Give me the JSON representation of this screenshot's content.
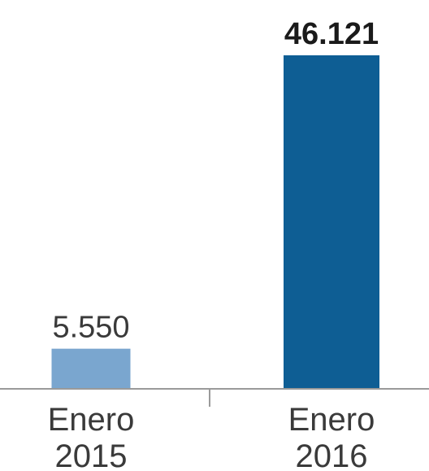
{
  "chart_data": {
    "type": "bar",
    "categories": [
      {
        "line1": "Enero",
        "line2": "2015"
      },
      {
        "line1": "Enero",
        "line2": "2016"
      }
    ],
    "values": [
      5550,
      46121
    ],
    "value_labels": [
      "5.550",
      "46.121"
    ],
    "value_label_bold": [
      false,
      true
    ],
    "bar_colors": [
      "#7aa6cf",
      "#0e5e94"
    ],
    "ylim": [
      0,
      46121
    ],
    "title": "",
    "xlabel": "",
    "ylabel": "",
    "grid": false,
    "legend": false
  }
}
